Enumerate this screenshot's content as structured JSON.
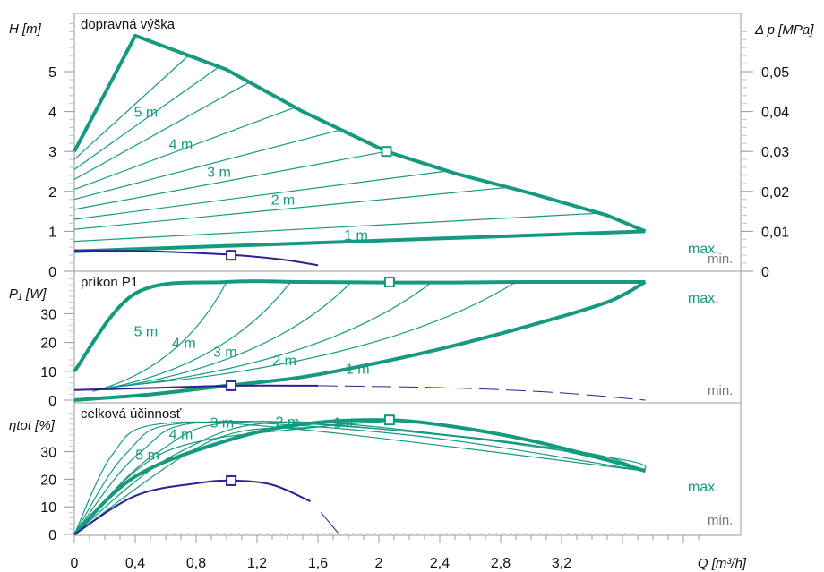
{
  "colors": {
    "teal": "#159a80",
    "navy": "#2b2196",
    "gray": "#777777",
    "frame": "#9a9a9a",
    "minor": "#c8c8c8"
  },
  "chart_data": {
    "type": "line",
    "x_axis": {
      "label": "Q [m³/h]",
      "range": [
        0,
        4.0
      ],
      "ticks": [
        0,
        0.4,
        0.8,
        1.2,
        1.6,
        2,
        2.4,
        2.8,
        3.2
      ],
      "tick_labels": [
        "0",
        "0,4",
        "0,8",
        "1,2",
        "1,6",
        "2",
        "2,4",
        "2,8",
        "3,2"
      ]
    },
    "panels": [
      {
        "id": "head",
        "title": "dopravná výška",
        "ylabel": "H [m]",
        "ylim": [
          0,
          6.3
        ],
        "yticks": [
          0,
          1,
          2,
          3,
          4,
          5
        ],
        "ylabel_right": "Δ p [MPa]",
        "yticks_right": [
          0,
          0.01,
          0.02,
          0.03,
          0.04,
          0.05
        ],
        "yticks_right_labels": [
          "0",
          "0,01",
          "0,02",
          "0,03",
          "0,04",
          "0,05"
        ],
        "series": [
          {
            "name": "max.",
            "x": [
              0,
              0.4,
              1.0,
              1.5,
              2.05,
              2.5,
              3.0,
              3.5,
              3.75
            ],
            "y": [
              3.0,
              5.9,
              5.05,
              4.0,
              3.0,
              2.45,
              1.95,
              1.4,
              1.0
            ]
          },
          {
            "name": "min.",
            "x": [
              0,
              0.5,
              1.0,
              1.35,
              1.6
            ],
            "y": [
              0.52,
              0.5,
              0.42,
              0.3,
              0.15
            ]
          },
          {
            "name": "1 m",
            "x": [
              0,
              3.75
            ],
            "y": [
              0.5,
              1.0
            ]
          }
        ],
        "constant_curves": {
          "left_y": [
            0.75,
            1.05,
            1.3,
            1.55,
            1.8,
            2.05,
            2.3,
            2.55,
            2.8
          ],
          "right_x": [
            3.45,
            2.85,
            2.45,
            2.05,
            1.75,
            1.45,
            1.15,
            0.95,
            0.75
          ]
        },
        "labels": [
          {
            "text": "5 m",
            "x": 0.47,
            "y": 4.0
          },
          {
            "text": "4 m",
            "x": 0.7,
            "y": 3.2
          },
          {
            "text": "3 m",
            "x": 0.95,
            "y": 2.5
          },
          {
            "text": "2 m",
            "x": 1.37,
            "y": 1.8
          },
          {
            "text": "1 m",
            "x": 1.85,
            "y": 0.92
          }
        ],
        "markers": [
          {
            "series": "max.",
            "x": 2.05,
            "y": 3.0
          },
          {
            "series": "min.",
            "x": 1.03,
            "y": 0.4
          }
        ]
      },
      {
        "id": "power",
        "title": "príkon P1",
        "ylabel": "P₁ [W]",
        "ylim": [
          0,
          42
        ],
        "yticks": [
          0,
          10,
          20,
          30
        ],
        "series": [
          {
            "name": "max.",
            "x": [
              0,
              0.4,
              1.0,
              1.5,
              2.05,
              2.5,
              3.0,
              3.5,
              3.75
            ],
            "y": [
              10,
              37,
              41,
              41,
              40.8,
              40.8,
              41,
              41,
              41
            ]
          },
          {
            "name": "1 m",
            "x": [
              0,
              0.5,
              1.0,
              1.5,
              2.0,
              2.5,
              3.0,
              3.5,
              3.75
            ],
            "y": [
              0,
              2,
              5,
              8,
              13,
              19,
              26,
              34,
              41
            ]
          },
          {
            "name": "min.",
            "x": [
              0,
              0.5,
              1.03,
              1.6
            ],
            "y": [
              3.5,
              4.2,
              5,
              5
            ]
          },
          {
            "name": "min. (extension)",
            "x": [
              1.6,
              2.5,
              3.2,
              3.75
            ],
            "y": [
              5,
              4.2,
              2.5,
              0
            ]
          }
        ],
        "labels": [
          {
            "text": "5 m",
            "x": 0.47,
            "y": 24
          },
          {
            "text": "4 m",
            "x": 0.72,
            "y": 20
          },
          {
            "text": "3 m",
            "x": 0.99,
            "y": 17
          },
          {
            "text": "2 m",
            "x": 1.38,
            "y": 14
          },
          {
            "text": "1 m",
            "x": 1.86,
            "y": 11
          }
        ],
        "markers": [
          {
            "series": "max.",
            "x": 2.07,
            "y": 41
          },
          {
            "series": "min.",
            "x": 1.03,
            "y": 5
          }
        ]
      },
      {
        "id": "efficiency",
        "title": "celková účinnosť",
        "ylabel": "ηtot [%]",
        "ylim": [
          0,
          45
        ],
        "yticks": [
          0,
          10,
          20,
          30
        ],
        "series": [
          {
            "name": "max.",
            "x": [
              0,
              0.4,
              1.0,
              1.5,
              2.05,
              2.5,
              3.0,
              3.5,
              3.75
            ],
            "y": [
              0,
              21,
              34,
              40,
              41.5,
              39,
              34,
              27,
              23
            ]
          },
          {
            "name": "min.",
            "x": [
              0,
              0.4,
              0.8,
              1.03,
              1.3,
              1.55
            ],
            "y": [
              0,
              14,
              18.5,
              19.5,
              18,
              12
            ]
          },
          {
            "name": "min. (extension)",
            "x": [
              1.62,
              1.74
            ],
            "y": [
              8,
              0
            ]
          }
        ],
        "labels": [
          {
            "text": "3 m",
            "x": 0.97,
            "y": 40.8
          },
          {
            "text": "2 m",
            "x": 1.4,
            "y": 41
          },
          {
            "text": "1 m",
            "x": 1.78,
            "y": 40.8
          },
          {
            "text": "4 m",
            "x": 0.7,
            "y": 36.5
          },
          {
            "text": "5 m",
            "x": 0.48,
            "y": 29
          }
        ],
        "markers": [
          {
            "series": "max.",
            "x": 2.07,
            "y": 41.5
          },
          {
            "series": "min.",
            "x": 1.03,
            "y": 19.5
          }
        ]
      }
    ],
    "end_labels": {
      "max": "max.",
      "min": "min."
    }
  }
}
